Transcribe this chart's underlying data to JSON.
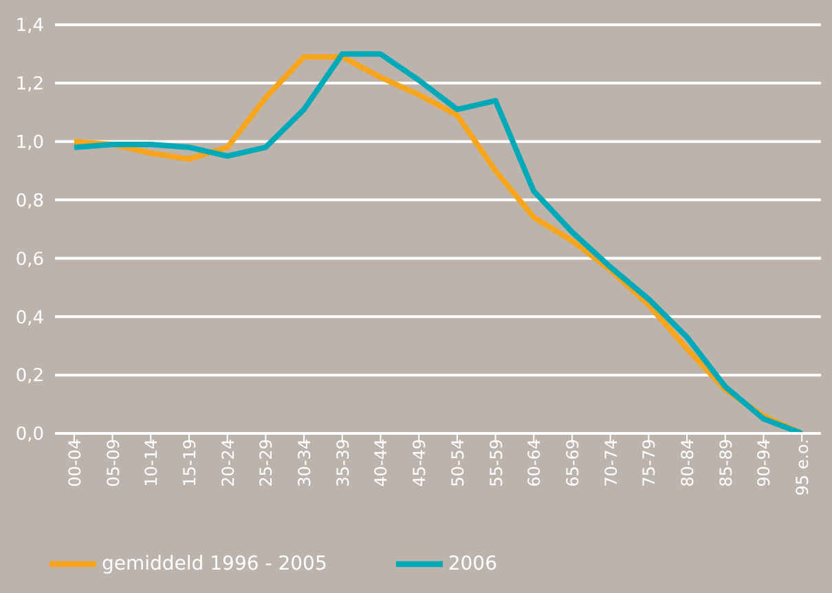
{
  "chart_data": {
    "type": "line",
    "categories": [
      "00-04",
      "05-09",
      "10-14",
      "15-19",
      "20-24",
      "25-29",
      "30-34",
      "35-39",
      "40-44",
      "45-49",
      "50-54",
      "55-59",
      "60-64",
      "65-69",
      "70-74",
      "75-79",
      "80-84",
      "85-89",
      "90-94",
      "95 e.o."
    ],
    "series": [
      {
        "name": "gemiddeld 1996 - 2005",
        "color": "#f7a51c",
        "values": [
          1.0,
          0.99,
          0.96,
          0.94,
          0.98,
          1.15,
          1.29,
          1.29,
          1.22,
          1.16,
          1.09,
          0.9,
          0.74,
          0.66,
          0.56,
          0.44,
          0.29,
          0.15,
          0.06,
          0.0
        ]
      },
      {
        "name": "2006",
        "color": "#00a9b8",
        "values": [
          0.98,
          0.99,
          0.99,
          0.98,
          0.95,
          0.98,
          1.11,
          1.3,
          1.3,
          1.21,
          1.11,
          1.14,
          0.83,
          0.69,
          0.57,
          0.46,
          0.33,
          0.16,
          0.05,
          0.0
        ]
      }
    ],
    "ylim": [
      0,
      1.4
    ],
    "yticks": [
      {
        "value": 0,
        "label": "0,0"
      },
      {
        "value": 0.2,
        "label": "0,2"
      },
      {
        "value": 0.4,
        "label": "0,4"
      },
      {
        "value": 0.6,
        "label": "0,6"
      },
      {
        "value": 0.8,
        "label": "0,8"
      },
      {
        "value": 1,
        "label": "1,0"
      },
      {
        "value": 1.2,
        "label": "1,2"
      },
      {
        "value": 1.4,
        "label": "1,4"
      }
    ],
    "grid": "y",
    "legend": "bottom",
    "marker": "none",
    "line_style": "solid"
  }
}
